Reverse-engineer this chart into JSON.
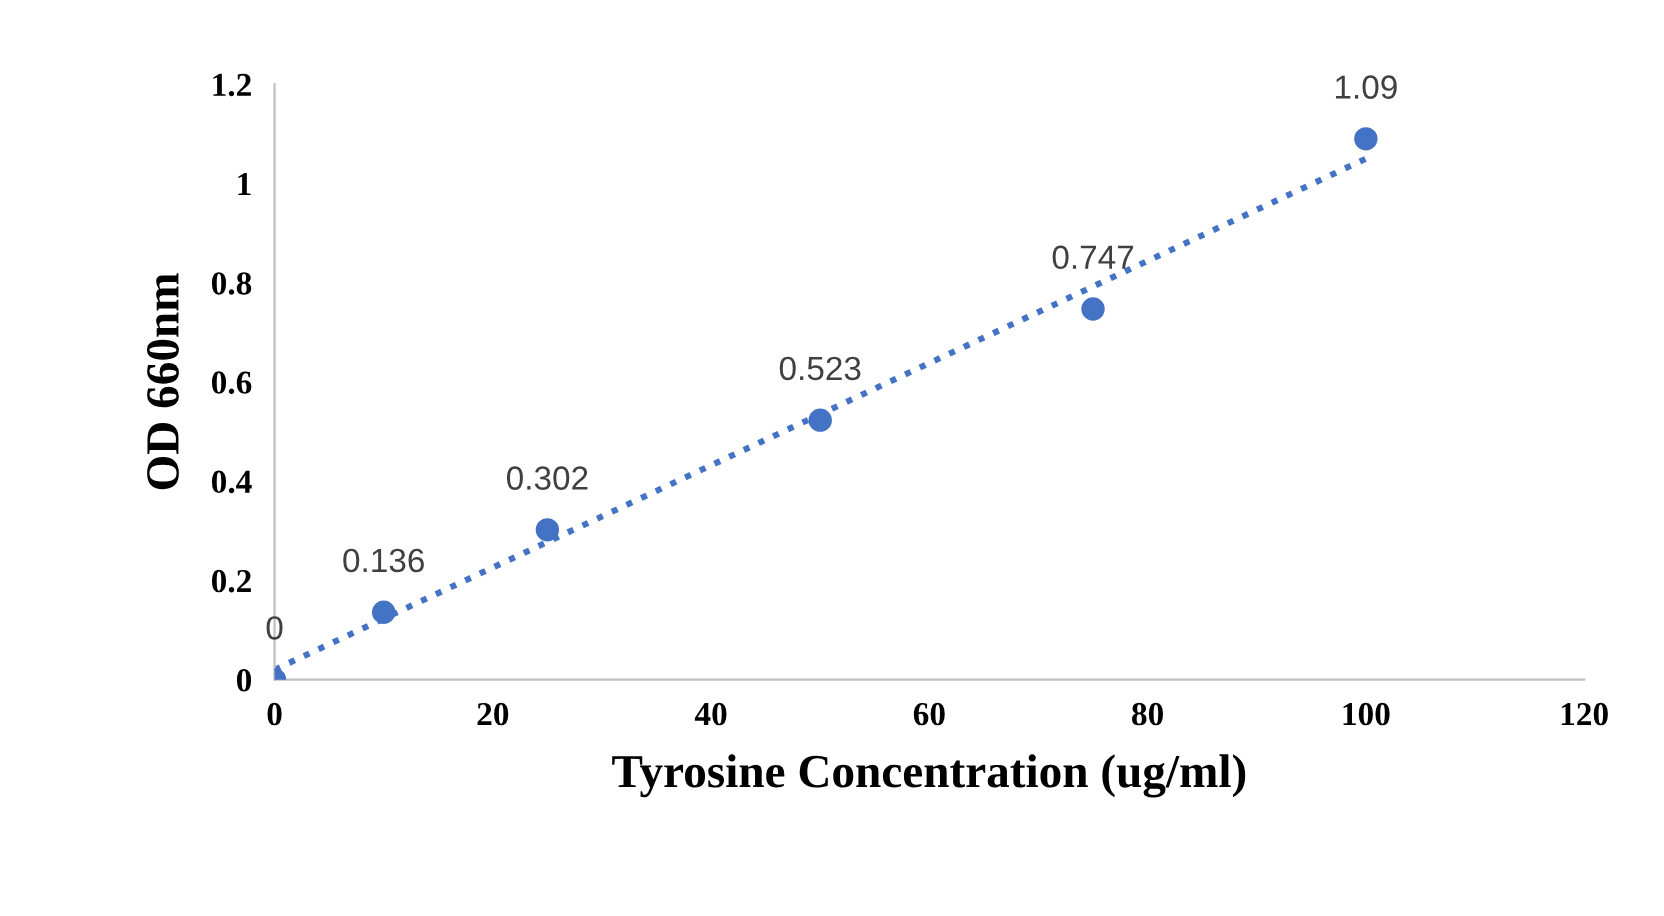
{
  "chart_data": {
    "type": "scatter",
    "xlabel": "Tyrosine Concentration (ug/ml)",
    "ylabel": "OD 660nm",
    "x": [
      0,
      10,
      25,
      50,
      75,
      100
    ],
    "series": [
      {
        "color": "#4472c4",
        "values": [
          0,
          0.136,
          0.302,
          0.523,
          0.747,
          1.09
        ],
        "data_labels": true,
        "marker": "circle"
      },
      {
        "type": "line",
        "color": "#4472c4",
        "x": [
          0,
          100
        ],
        "values": [
          0.02,
          1.05
        ],
        "line_style": "dotted",
        "marker": "none"
      }
    ],
    "xlim": [
      0,
      120
    ],
    "xticks": [
      0,
      20,
      40,
      60,
      80,
      100,
      120
    ],
    "ylim": [
      0,
      1.2
    ],
    "yticks": [
      0,
      0.2,
      0.4,
      0.6,
      0.8,
      1,
      1.2
    ],
    "grid": false
  }
}
